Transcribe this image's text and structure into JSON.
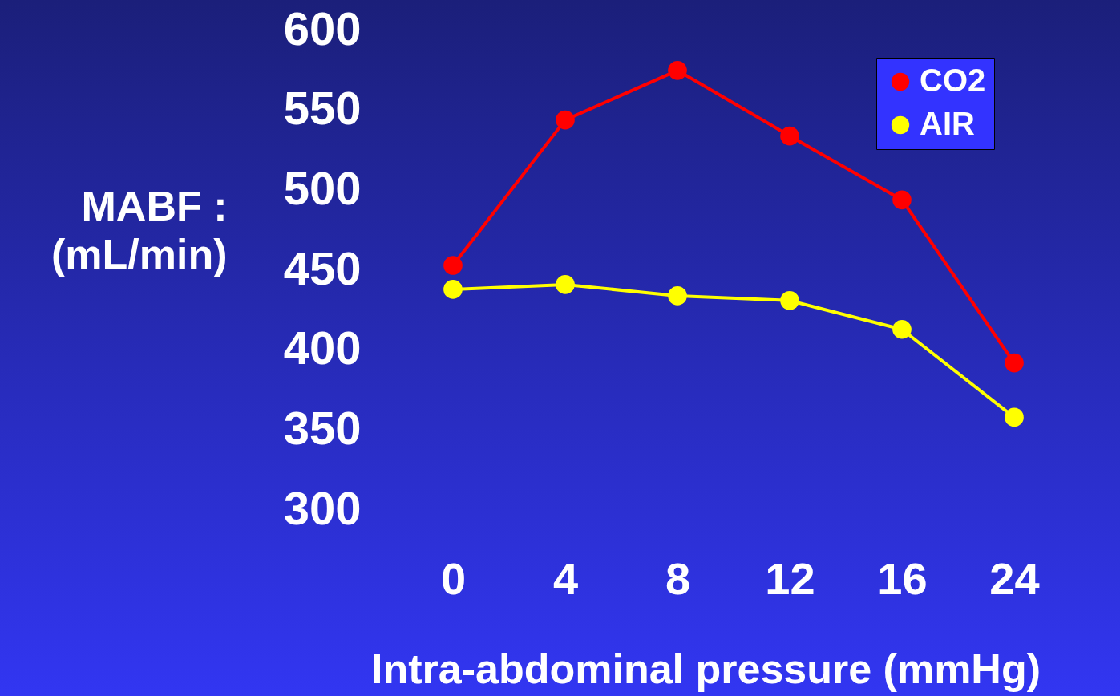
{
  "chart_data": {
    "type": "line",
    "xlabel": "Intra-abdominal pressure (mmHg)",
    "ylabel": "MABF :\n(mL/min)",
    "categories": [
      "0",
      "4",
      "8",
      "12",
      "16",
      "24"
    ],
    "series": [
      {
        "name": "CO2",
        "color": "#ff0000",
        "values": [
          453,
          544,
          575,
          534,
          494,
          392
        ]
      },
      {
        "name": "AIR",
        "color": "#ffff00",
        "values": [
          438,
          441,
          434,
          431,
          413,
          358
        ]
      }
    ],
    "ylim": [
      300,
      600
    ],
    "yticks": [
      300,
      350,
      400,
      450,
      500,
      550,
      600
    ],
    "grid": false,
    "legend": "top right",
    "marker": "circle",
    "line_style": "solid"
  }
}
